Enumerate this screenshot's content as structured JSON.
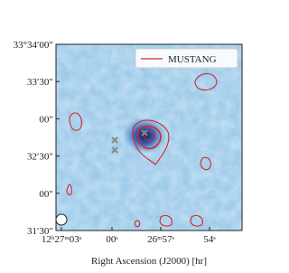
{
  "figure": {
    "xlabel": "Right Ascension (J2000) [hr]",
    "xtick_labels": [
      "12ʰ27ᵐ03ˢ",
      "00ˢ",
      "26ᵐ57ˢ",
      "54ˢ"
    ],
    "ytick_labels": [
      "33°34′00″",
      "33′30″",
      "00″",
      "32′30″",
      "00″",
      "31′30″"
    ],
    "legend": {
      "label": "MUSTANG",
      "color": "#d62728"
    }
  }
}
